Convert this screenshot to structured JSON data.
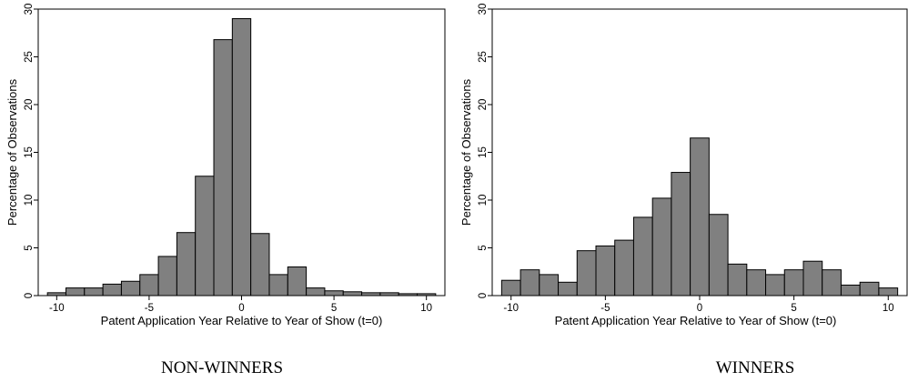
{
  "chart_data": [
    {
      "type": "bar",
      "title": "NON-WINNERS",
      "xlabel": "Patent Application Year Relative to Year of Show (t=0)",
      "ylabel": "Percentage of Observations",
      "xlim": [
        -11,
        11
      ],
      "ylim": [
        0,
        30
      ],
      "xticks": [
        -10,
        -5,
        0,
        5,
        10
      ],
      "yticks": [
        0,
        5,
        10,
        15,
        20,
        25,
        30
      ],
      "bin_width": 1,
      "bins": [
        {
          "x": -10,
          "value": 0.3
        },
        {
          "x": -9,
          "value": 0.8
        },
        {
          "x": -8,
          "value": 0.8
        },
        {
          "x": -7,
          "value": 1.2
        },
        {
          "x": -6,
          "value": 1.5
        },
        {
          "x": -5,
          "value": 2.2
        },
        {
          "x": -4,
          "value": 4.1
        },
        {
          "x": -3,
          "value": 6.6
        },
        {
          "x": -2,
          "value": 12.5
        },
        {
          "x": -1,
          "value": 26.8
        },
        {
          "x": 0,
          "value": 29.0
        },
        {
          "x": 1,
          "value": 6.5
        },
        {
          "x": 2,
          "value": 2.2
        },
        {
          "x": 3,
          "value": 3.0
        },
        {
          "x": 4,
          "value": 0.8
        },
        {
          "x": 5,
          "value": 0.5
        },
        {
          "x": 6,
          "value": 0.4
        },
        {
          "x": 7,
          "value": 0.3
        },
        {
          "x": 8,
          "value": 0.3
        },
        {
          "x": 9,
          "value": 0.2
        },
        {
          "x": 10,
          "value": 0.2
        }
      ]
    },
    {
      "type": "bar",
      "title": "WINNERS",
      "xlabel": "Patent Application Year Relative to Year of Show (t=0)",
      "ylabel": "Percentage of Observations",
      "xlim": [
        -11,
        11
      ],
      "ylim": [
        0,
        30
      ],
      "xticks": [
        -10,
        -5,
        0,
        5,
        10
      ],
      "yticks": [
        0,
        5,
        10,
        15,
        20,
        25,
        30
      ],
      "bin_width": 1,
      "bins": [
        {
          "x": -10,
          "value": 1.6
        },
        {
          "x": -9,
          "value": 2.7
        },
        {
          "x": -8,
          "value": 2.2
        },
        {
          "x": -7,
          "value": 1.4
        },
        {
          "x": -6,
          "value": 4.7
        },
        {
          "x": -5,
          "value": 5.2
        },
        {
          "x": -4,
          "value": 5.8
        },
        {
          "x": -3,
          "value": 8.2
        },
        {
          "x": -2,
          "value": 10.2
        },
        {
          "x": -1,
          "value": 12.9
        },
        {
          "x": 0,
          "value": 16.5
        },
        {
          "x": 1,
          "value": 8.5
        },
        {
          "x": 2,
          "value": 3.3
        },
        {
          "x": 3,
          "value": 2.7
        },
        {
          "x": 4,
          "value": 2.2
        },
        {
          "x": 5,
          "value": 2.7
        },
        {
          "x": 6,
          "value": 3.6
        },
        {
          "x": 7,
          "value": 2.7
        },
        {
          "x": 8,
          "value": 1.1
        },
        {
          "x": 9,
          "value": 1.4
        },
        {
          "x": 10,
          "value": 0.8
        }
      ]
    }
  ]
}
